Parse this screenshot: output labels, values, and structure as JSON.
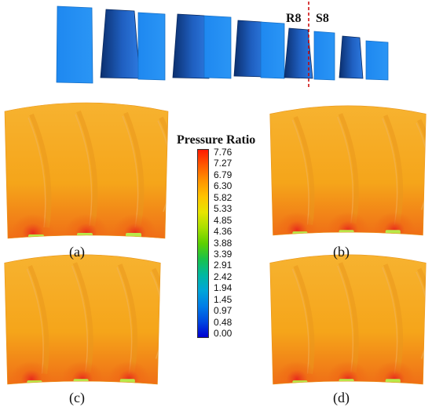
{
  "blade_row": {
    "labels": {
      "rotor": "R8",
      "stator": "S8"
    },
    "colors": {
      "light_blade": "#1e88f0",
      "dark_blade": "#0d3f8c",
      "divider": "#cc0000"
    }
  },
  "panels": [
    {
      "label": "(a)"
    },
    {
      "label": "(b)"
    },
    {
      "label": "(c)"
    },
    {
      "label": "(d)"
    }
  ],
  "colorbar": {
    "title": "Pressure Ratio",
    "ticks": [
      "7.76",
      "7.27",
      "6.79",
      "6.30",
      "5.82",
      "5.33",
      "4.85",
      "4.36",
      "3.88",
      "3.39",
      "2.91",
      "2.42",
      "1.94",
      "1.45",
      "0.97",
      "0.48",
      "0.00"
    ],
    "colors": [
      "#ff1a00",
      "#ff5a00",
      "#ff9500",
      "#ffc400",
      "#e8e400",
      "#a8e000",
      "#5cd000",
      "#19c24a",
      "#00b8a0",
      "#00a6d8",
      "#007ee8",
      "#0048e0",
      "#0000d0"
    ]
  },
  "contour_colors": {
    "base": "#f5a51a",
    "top": "#f7b432",
    "hot": "#e8291c",
    "warm": "#ef6a16",
    "streak": "#e9981e",
    "green": "#b8e84a"
  }
}
